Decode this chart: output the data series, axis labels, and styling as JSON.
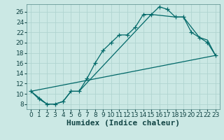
{
  "title": "",
  "xlabel": "Humidex (Indice chaleur)",
  "bg_color": "#cbe8e4",
  "grid_color": "#b0d4d0",
  "line_color": "#006868",
  "xlim": [
    -0.5,
    23.5
  ],
  "ylim": [
    7,
    27.5
  ],
  "xticks": [
    0,
    1,
    2,
    3,
    4,
    5,
    6,
    7,
    8,
    9,
    10,
    11,
    12,
    13,
    14,
    15,
    16,
    17,
    18,
    19,
    20,
    21,
    22,
    23
  ],
  "yticks": [
    8,
    10,
    12,
    14,
    16,
    18,
    20,
    22,
    24,
    26
  ],
  "curve1_x": [
    0,
    1,
    2,
    3,
    4,
    5,
    6,
    7,
    8,
    9,
    10,
    11,
    12,
    13,
    14,
    15,
    16,
    17,
    18,
    19,
    20,
    21,
    22,
    23
  ],
  "curve1_y": [
    10.5,
    9.0,
    8.0,
    8.0,
    8.5,
    10.5,
    10.5,
    13.0,
    16.0,
    18.5,
    20.0,
    21.5,
    21.5,
    23.0,
    25.5,
    25.5,
    27.0,
    26.5,
    25.0,
    25.0,
    22.0,
    21.0,
    20.0,
    17.5
  ],
  "curve2_x": [
    0,
    2,
    3,
    4,
    5,
    6,
    15,
    18,
    19,
    21,
    22,
    23
  ],
  "curve2_y": [
    10.5,
    8.0,
    8.0,
    8.5,
    10.5,
    10.5,
    25.5,
    25.0,
    25.0,
    21.0,
    20.5,
    17.5
  ],
  "curve3_x": [
    0,
    23
  ],
  "curve3_y": [
    10.5,
    17.5
  ],
  "xlabel_fontsize": 8,
  "tick_fontsize": 6.5
}
